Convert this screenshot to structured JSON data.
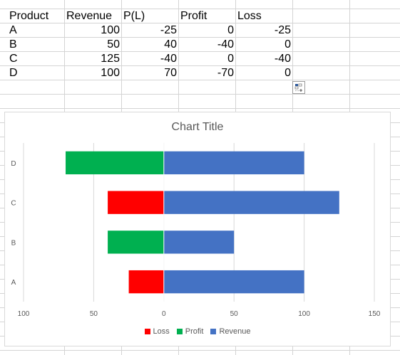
{
  "sheet": {
    "headers": [
      "Product",
      "Revenue",
      "P(L)",
      "Profit",
      "Loss"
    ],
    "rows": [
      [
        "A",
        "100",
        "-25",
        "0",
        "-25"
      ],
      [
        "B",
        "50",
        "40",
        "-40",
        "0"
      ],
      [
        "C",
        "125",
        "-40",
        "0",
        "-40"
      ],
      [
        "D",
        "100",
        "70",
        "-70",
        "0"
      ]
    ]
  },
  "quick_analysis_icon": "quick-analysis-icon",
  "chart_data": {
    "type": "bar",
    "orientation": "horizontal",
    "stacked": true,
    "title": "Chart Title",
    "categories": [
      "A",
      "B",
      "C",
      "D"
    ],
    "series": [
      {
        "name": "Loss",
        "values": [
          -25,
          0,
          -40,
          0
        ],
        "color": "#FF0000"
      },
      {
        "name": "Profit",
        "values": [
          0,
          -40,
          0,
          -70
        ],
        "color": "#00B050"
      },
      {
        "name": "Revenue",
        "values": [
          100,
          50,
          125,
          100
        ],
        "color": "#4472C4"
      }
    ],
    "xlim": [
      -100,
      150
    ],
    "x_ticks": [
      "100",
      "50",
      "0",
      "50",
      "100",
      "150"
    ],
    "x_tick_values": [
      -100,
      -50,
      0,
      50,
      100,
      150
    ],
    "grid": true,
    "legend_position": "bottom"
  }
}
